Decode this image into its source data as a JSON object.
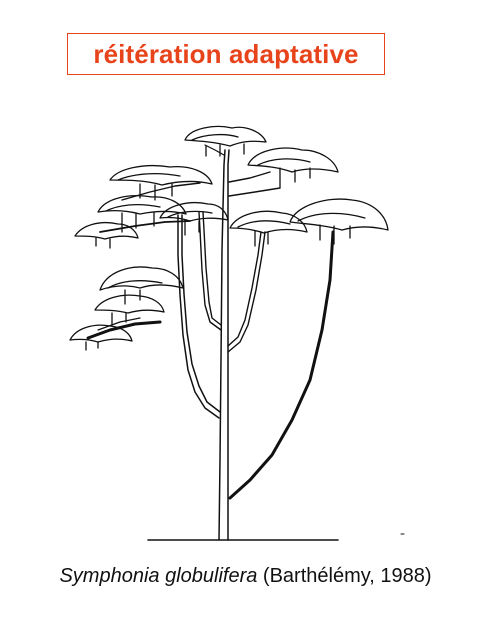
{
  "title": "réitération adaptative",
  "caption": {
    "species": "Symphonia globulifera",
    "reference": " (Barthélémy, 1988)"
  },
  "colors": {
    "accent": "#e8441c",
    "ink": "#111111",
    "background": "#ffffff"
  },
  "figure": {
    "subject": "tree architecture drawing",
    "icon": "tree-illustration"
  }
}
